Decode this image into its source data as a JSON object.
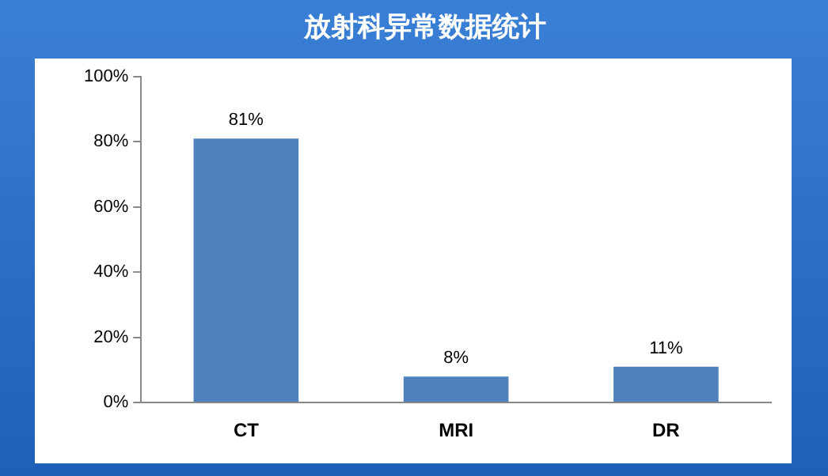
{
  "chart_data": {
    "type": "bar",
    "title": "放射科异常数据统计",
    "categories": [
      "CT",
      "MRI",
      "DR"
    ],
    "values": [
      81,
      8,
      11
    ],
    "color": "#4f81bd",
    "value_labels": [
      "81%",
      "8%",
      "11%"
    ],
    "ylim": [
      0,
      100
    ],
    "yticks": [
      {
        "value": 0,
        "label": "0%"
      },
      {
        "value": 20,
        "label": "20%"
      },
      {
        "value": 40,
        "label": "40%"
      },
      {
        "value": 60,
        "label": "60%"
      },
      {
        "value": 80,
        "label": "80%"
      },
      {
        "value": 100,
        "label": "100%"
      }
    ],
    "grid": false,
    "legend": false
  }
}
